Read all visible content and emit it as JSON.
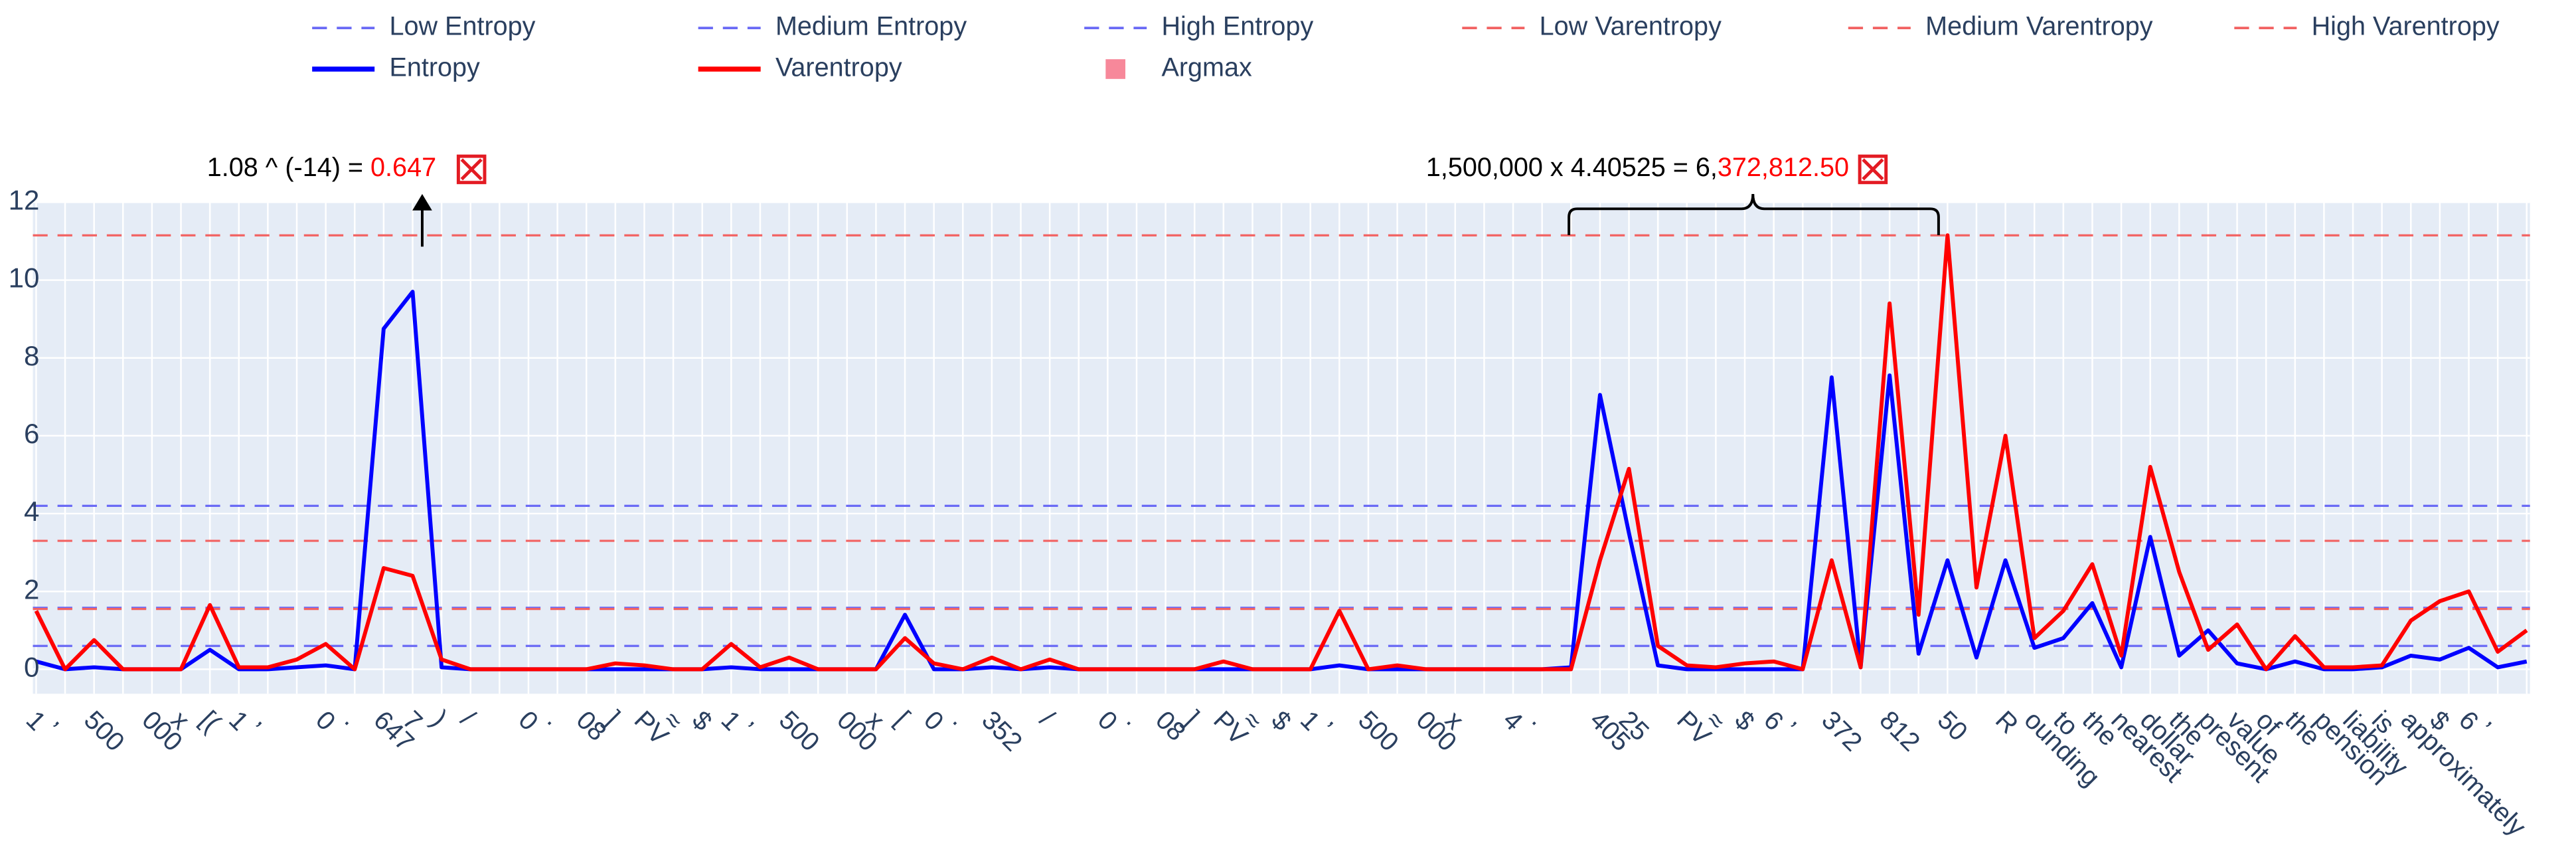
{
  "chart_data": {
    "type": "line",
    "categories": [
      "1",
      ",",
      "500",
      null,
      "000",
      "x",
      "[(",
      "1",
      ",",
      null,
      "0",
      ".",
      "647",
      "7",
      ")",
      "/",
      null,
      "0",
      ".",
      "08",
      "]",
      "PV",
      "≈",
      "$",
      "1",
      ",",
      "500",
      null,
      "000",
      "x",
      "[",
      "0",
      ".",
      "352",
      null,
      "/",
      null,
      "0",
      ".",
      "08",
      "]",
      "PV",
      "≈",
      "$",
      "1",
      ",",
      "500",
      null,
      "000",
      "x",
      null,
      "4",
      ".",
      null,
      "405",
      "25",
      null,
      "PV",
      "≈",
      "$",
      "6",
      ",",
      "372",
      null,
      "812",
      null,
      "50",
      null,
      "R",
      "ounding",
      "to",
      "the",
      "nearest",
      "dollar",
      "the",
      "present",
      "value",
      "of",
      "the",
      "pension",
      "liability",
      "is",
      "approximately",
      "$",
      "6",
      ",",
      null
    ],
    "series": [
      {
        "name": "Entropy",
        "color": "#0000ff",
        "values": [
          0.2,
          0,
          0.05,
          0,
          0,
          0,
          0.5,
          0,
          0,
          0.05,
          0.1,
          0,
          8.75,
          9.7,
          0.05,
          0,
          0,
          0,
          0,
          0,
          0,
          0,
          0,
          0,
          0.05,
          0,
          0,
          0,
          0,
          0,
          1.4,
          0,
          0,
          0.05,
          0,
          0.05,
          0,
          0,
          0,
          0,
          0,
          0,
          0,
          0,
          0,
          0.1,
          0,
          0,
          0,
          0,
          0,
          0,
          0,
          0.05,
          7.05,
          3.5,
          0.1,
          0,
          0,
          0,
          0,
          0,
          7.5,
          0.05,
          7.55,
          0.4,
          2.8,
          0.3,
          2.8,
          0.55,
          0.8,
          1.7,
          0.05,
          3.4,
          0.35,
          1.0,
          0.15,
          0,
          0.2,
          0,
          0,
          0.05,
          0.35,
          0.25,
          0.55,
          0.05,
          0.2
        ]
      },
      {
        "name": "Varentropy",
        "color": "#ff0000",
        "values": [
          1.5,
          0,
          0.75,
          0,
          0,
          0,
          1.65,
          0.05,
          0.05,
          0.25,
          0.65,
          0,
          2.6,
          2.4,
          0.25,
          0,
          0,
          0,
          0,
          0,
          0.15,
          0.1,
          0,
          0,
          0.65,
          0.05,
          0.3,
          0,
          0,
          0,
          0.8,
          0.15,
          0,
          0.3,
          0,
          0.25,
          0,
          0,
          0,
          0,
          0,
          0.2,
          0,
          0,
          0,
          1.5,
          0,
          0.1,
          0,
          0,
          0,
          0,
          0,
          0,
          2.8,
          5.15,
          0.6,
          0.1,
          0.05,
          0.15,
          0.2,
          0,
          2.8,
          0.05,
          9.4,
          1.4,
          11.15,
          2.1,
          6.0,
          0.8,
          1.5,
          2.7,
          0.35,
          5.2,
          2.5,
          0.5,
          1.15,
          0,
          0.85,
          0.05,
          0.05,
          0.1,
          1.25,
          1.75,
          2.0,
          0.45,
          1.0
        ]
      }
    ],
    "reference_lines": [
      {
        "name": "Low Entropy",
        "value": 0.6,
        "color": "#6a6af5"
      },
      {
        "name": "Medium Entropy",
        "value": 4.2,
        "color": "#6a6af5"
      },
      {
        "name": "High Entropy",
        "value": 1.58,
        "color": "#6a6af5"
      },
      {
        "name": "Low Varentropy",
        "value": 1.55,
        "color": "#f26262"
      },
      {
        "name": "Medium Varentropy",
        "value": 3.3,
        "color": "#f26262"
      },
      {
        "name": "High Varentropy",
        "value": 11.15,
        "color": "#f26262"
      }
    ],
    "argmax": {
      "name": "Argmax",
      "color": "#f7889a"
    },
    "ylim": [
      -0.63,
      12
    ],
    "yticks": [
      0,
      2,
      4,
      6,
      8,
      10,
      12
    ],
    "grid": true,
    "annotations": [
      {
        "parts": [
          {
            "text": "1.08 ^ (-14) = ",
            "color": "#000000"
          },
          {
            "text": "0.647",
            "color": "#ff0000"
          }
        ]
      },
      {
        "parts": [
          {
            "text": "1,500,000 x 4.40525 = 6,",
            "color": "#000000"
          },
          {
            "text": "372,812.50",
            "color": "#ff0000"
          }
        ]
      }
    ]
  }
}
